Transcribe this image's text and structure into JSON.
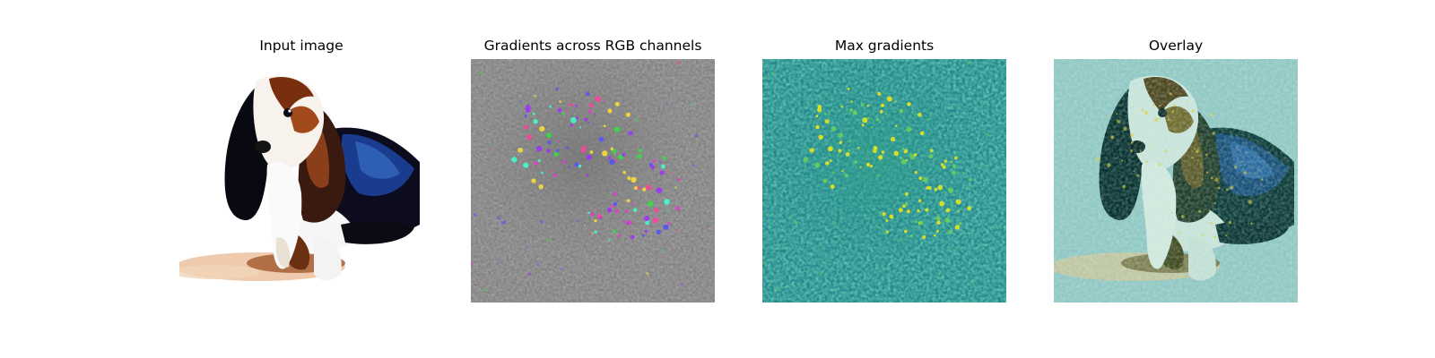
{
  "panels": [
    {
      "title": "Input image"
    },
    {
      "title": "Gradients across RGB channels"
    },
    {
      "title": "Max gradients"
    },
    {
      "title": "Overlay"
    }
  ],
  "colors": {
    "figure_background": "#ffffff",
    "gradient_gray": "#808080",
    "viridis_mid": "#26888d",
    "viridis_high": "#f2e51c",
    "overlay_tint": "#8fc7c5",
    "dog_black": "#0a0a12",
    "dog_brown": "#8a3f1a",
    "dog_blue": "#163a8c"
  }
}
